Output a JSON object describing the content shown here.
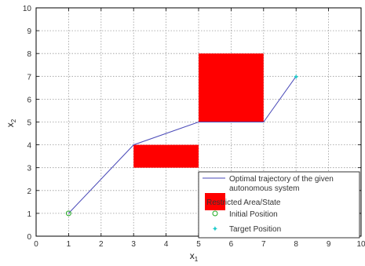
{
  "chart_data": {
    "type": "line",
    "xlim": [
      0,
      10
    ],
    "ylim": [
      0,
      10
    ],
    "xticks": [
      "0",
      "1",
      "2",
      "3",
      "4",
      "5",
      "6",
      "7",
      "8",
      "9",
      "10"
    ],
    "yticks": [
      "0",
      "1",
      "2",
      "3",
      "4",
      "5",
      "6",
      "7",
      "8",
      "9",
      "10"
    ],
    "xlabel": "x",
    "xlabel_sub": "1",
    "ylabel": "x",
    "ylabel_sub": "2",
    "grid": true,
    "legend_position": "bottom-right",
    "series": [
      {
        "name": "Optimal trajectory of the given autonomous system",
        "kind": "line",
        "color": "#4a4ab8",
        "x": [
          1,
          3,
          5,
          7,
          8
        ],
        "y": [
          1,
          4,
          5,
          5,
          7
        ]
      },
      {
        "name": "Restricted Area/State",
        "kind": "rect",
        "color": "#ff0000",
        "rects": [
          {
            "x0": 3,
            "x1": 5,
            "y0": 3,
            "y1": 4
          },
          {
            "x0": 5,
            "x1": 7,
            "y0": 5,
            "y1": 8
          }
        ]
      },
      {
        "name": "Initial Position",
        "kind": "marker",
        "marker": "circle",
        "color": "#22aa22",
        "x": [
          1
        ],
        "y": [
          1
        ]
      },
      {
        "name": "Target Position",
        "kind": "marker",
        "marker": "star",
        "color": "#22cccc",
        "x": [
          8
        ],
        "y": [
          7
        ]
      }
    ],
    "legend": {
      "line_label_1": "Optimal trajectory of the given",
      "line_label_2": "autonomous system",
      "rect_label": "Restricted Area/State",
      "initial_label": "Initial Position",
      "target_label": "Target Position"
    }
  }
}
